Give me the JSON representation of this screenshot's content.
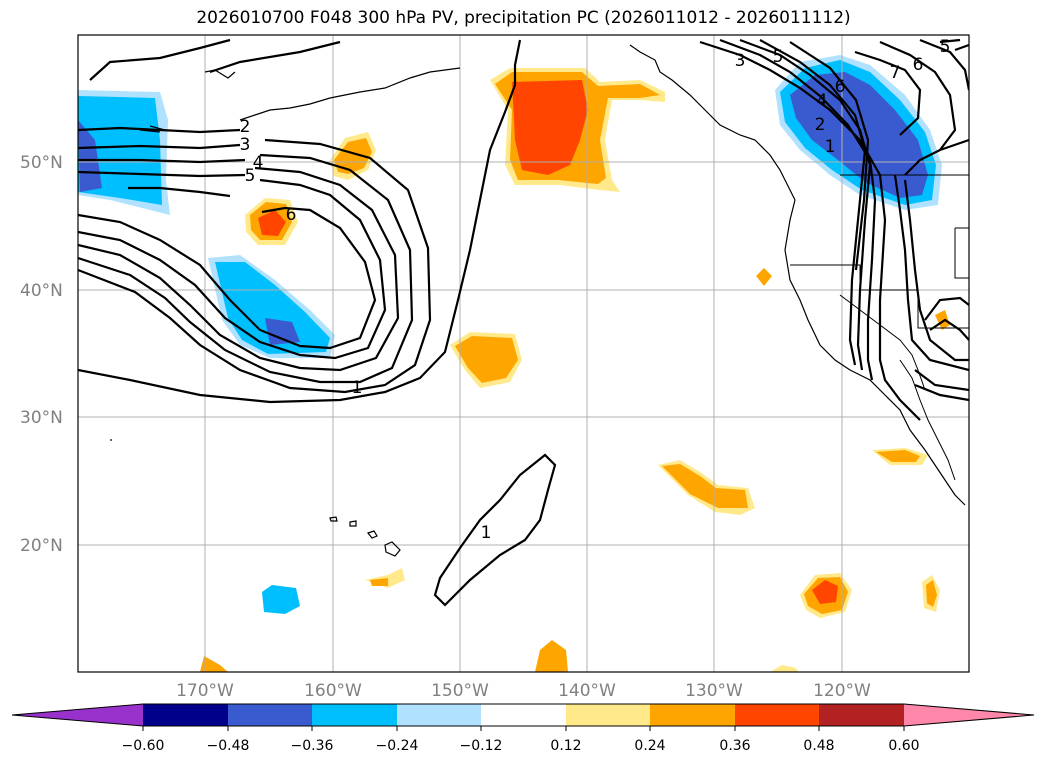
{
  "title": "2026010700 F048 300 hPa PV, precipitation PC (2026011012 - 2026011112)",
  "latitude_labels": [
    "50°N",
    "40°N",
    "30°N",
    "20°N"
  ],
  "longitude_labels": [
    "170°W",
    "160°W",
    "150°W",
    "140°W",
    "130°W",
    "120°W"
  ],
  "contour_labels": [
    "2",
    "3",
    "4",
    "5",
    "6",
    "1",
    "1",
    "3",
    "5",
    "4",
    "2",
    "1",
    "6",
    "7",
    "6",
    "5"
  ],
  "colorbar": {
    "colors": [
      "#9932cc",
      "#00008b",
      "#3a5bcf",
      "#00bfff",
      "#b0e2ff",
      "#ffffff",
      "#ffe98a",
      "#ffa500",
      "#ff4500",
      "#b22222",
      "#ff88aa"
    ],
    "tick_labels": [
      "−0.60",
      "−0.48",
      "−0.36",
      "−0.24",
      "−0.12",
      "0.12",
      "0.24",
      "0.36",
      "0.48",
      "0.60"
    ]
  }
}
